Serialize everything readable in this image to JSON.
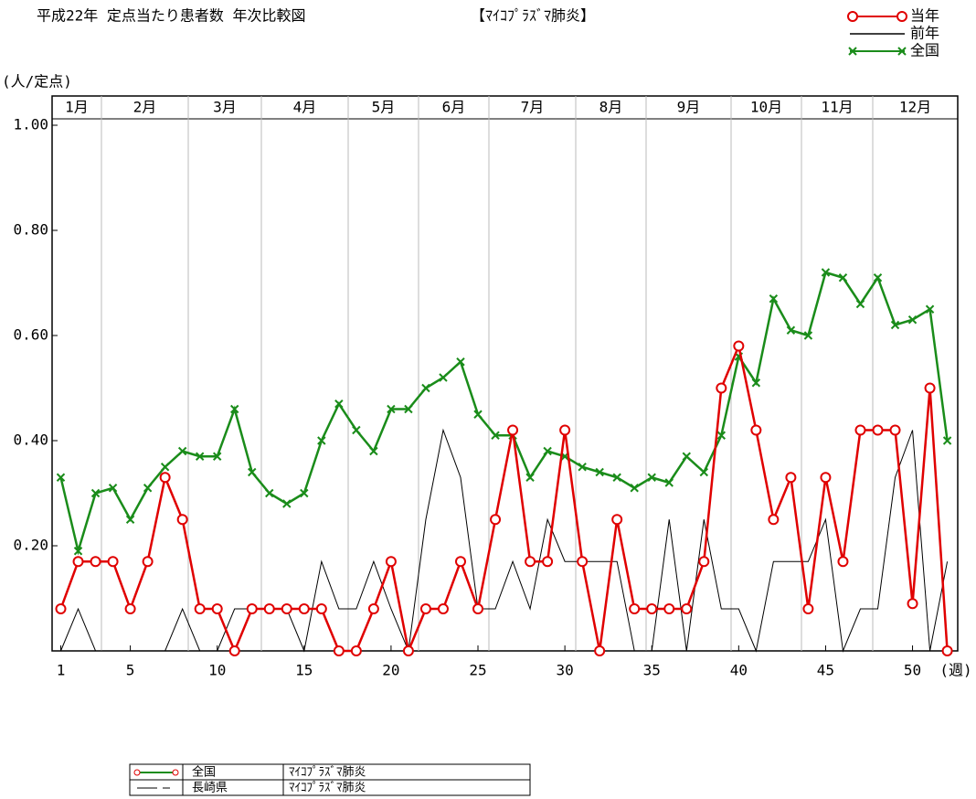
{
  "chart_data": {
    "type": "line",
    "title": "平成22年 定点当たり患者数 年次比較図",
    "subtitle": "【ﾏｲｺﾌﾟﾗｽﾞﾏ肺炎】",
    "y_label": "(人/定点)",
    "x_label": "(週)",
    "months": [
      "1月",
      "2月",
      "3月",
      "4月",
      "5月",
      "6月",
      "7月",
      "8月",
      "9月",
      "10月",
      "11月",
      "12月"
    ],
    "x": [
      1,
      2,
      3,
      4,
      5,
      6,
      7,
      8,
      9,
      10,
      11,
      12,
      13,
      14,
      15,
      16,
      17,
      18,
      19,
      20,
      21,
      22,
      23,
      24,
      25,
      26,
      27,
      28,
      29,
      30,
      31,
      32,
      33,
      34,
      35,
      36,
      37,
      38,
      39,
      40,
      41,
      42,
      43,
      44,
      45,
      46,
      47,
      48,
      49,
      50,
      51,
      52
    ],
    "xlim": [
      0.5,
      52.6
    ],
    "xticks": [
      1,
      5,
      10,
      15,
      20,
      25,
      30,
      35,
      40,
      45,
      50
    ],
    "ylim": [
      0,
      1
    ],
    "yticks": [
      {
        "value": 0.2,
        "label": "0.20"
      },
      {
        "value": 0.4,
        "label": "0.40"
      },
      {
        "value": 0.6,
        "label": "0.60"
      },
      {
        "value": 0.8,
        "label": "0.80"
      },
      {
        "value": 1,
        "label": "1.00"
      }
    ],
    "series": [
      {
        "name": "当年",
        "color": "#e00000",
        "marker": "circle",
        "values": [
          0.08,
          0.17,
          0.17,
          0.17,
          0.08,
          0.17,
          0.33,
          0.25,
          0.08,
          0.08,
          0,
          0.08,
          0.08,
          0.08,
          0.08,
          0.08,
          0,
          0,
          0.08,
          0.17,
          0,
          0.08,
          0.08,
          0.17,
          0.08,
          0.25,
          0.42,
          0.17,
          0.17,
          0.42,
          0.17,
          0,
          0.25,
          0.08,
          0.08,
          0.08,
          0.08,
          0.17,
          0.5,
          0.58,
          0.42,
          0.25,
          0.33,
          0.08,
          0.33,
          0.17,
          0.42,
          0.42,
          0.42,
          0.09,
          0.5,
          0
        ]
      },
      {
        "name": "前年",
        "color": "#000000",
        "marker": "none",
        "values": [
          0,
          0.08,
          0,
          0,
          0,
          0,
          0,
          0.08,
          0,
          0,
          0.08,
          0.08,
          0.08,
          0.08,
          0,
          0.17,
          0.08,
          0.08,
          0.17,
          0.08,
          0,
          0.25,
          0.42,
          0.33,
          0.08,
          0.08,
          0.17,
          0.08,
          0.25,
          0.17,
          0.17,
          0.17,
          0.17,
          0,
          0,
          0.25,
          0,
          0.25,
          0.08,
          0.08,
          0,
          0.17,
          0.17,
          0.17,
          0.25,
          0,
          0.08,
          0.08,
          0.33,
          0.42,
          0,
          0.17
        ]
      },
      {
        "name": "全国",
        "color": "#1a8c1a",
        "marker": "cross",
        "values": [
          0.33,
          0.19,
          0.3,
          0.31,
          0.25,
          0.31,
          0.35,
          0.38,
          0.37,
          0.37,
          0.46,
          0.34,
          0.3,
          0.28,
          0.3,
          0.4,
          0.47,
          0.42,
          0.38,
          0.46,
          0.46,
          0.5,
          0.52,
          0.55,
          0.45,
          0.41,
          0.41,
          0.33,
          0.38,
          0.37,
          0.35,
          0.34,
          0.33,
          0.31,
          0.33,
          0.32,
          0.37,
          0.34,
          0.41,
          0.56,
          0.51,
          0.67,
          0.61,
          0.6,
          0.72,
          0.71,
          0.66,
          0.71,
          0.62,
          0.63,
          0.65,
          0.4
        ]
      }
    ],
    "legend_table": [
      [
        "全国",
        "ﾏｲｺﾌﾟﾗｽﾞﾏ肺炎"
      ],
      [
        "長崎県",
        "ﾏｲｺﾌﾟﾗｽﾞﾏ肺炎"
      ]
    ]
  }
}
